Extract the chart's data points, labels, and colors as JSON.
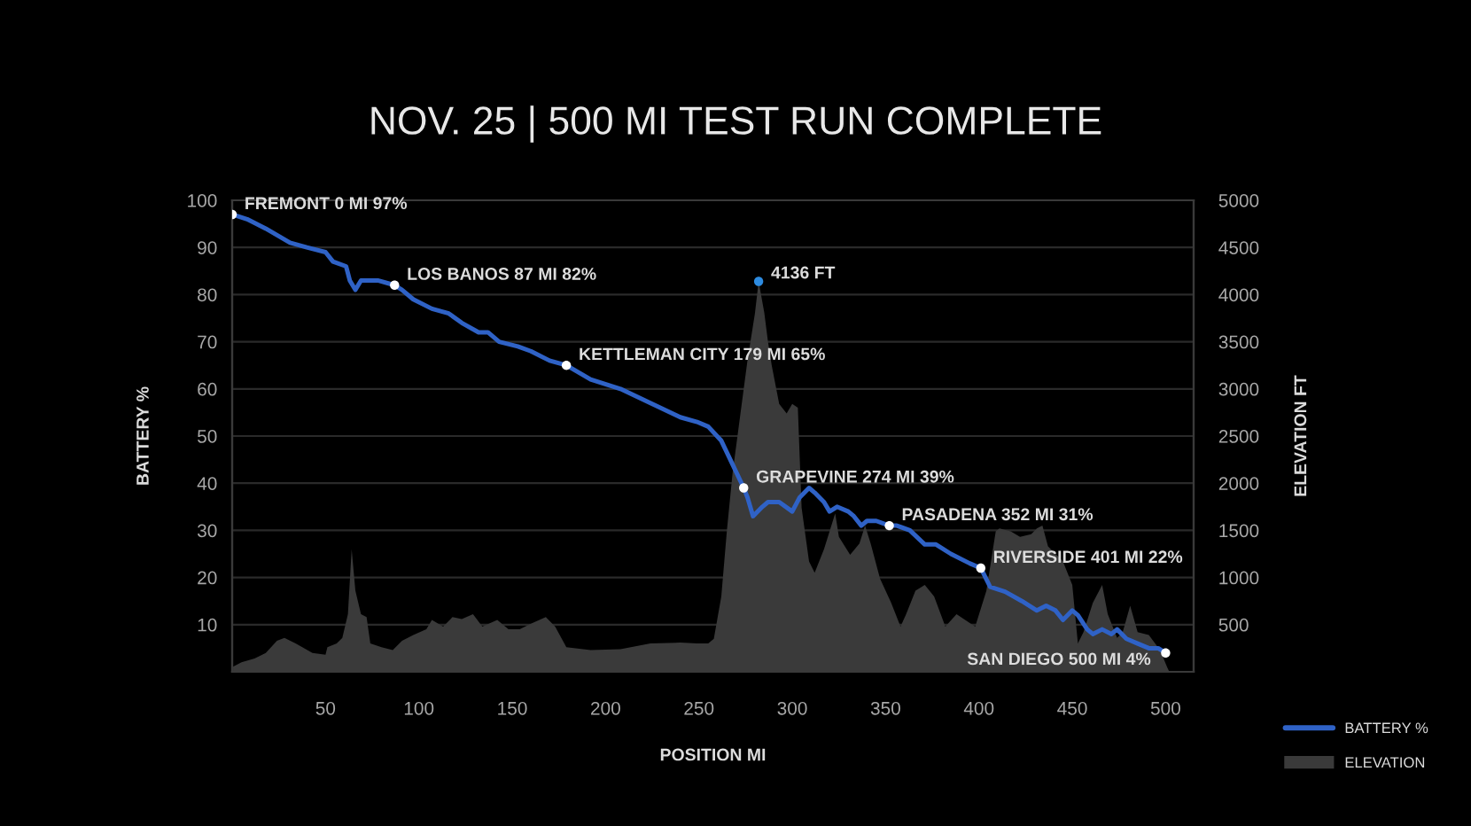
{
  "chart_data": {
    "type": "line",
    "title": "NOV. 25 | 500 MI TEST RUN COMPLETE",
    "xlabel": "POSITION MI",
    "ylabel": "BATTERY %",
    "y2label": "ELEVATION FT",
    "xlim": [
      0,
      515
    ],
    "xticks": [
      50,
      100,
      150,
      200,
      250,
      300,
      350,
      400,
      450,
      500
    ],
    "ylim": [
      0,
      100
    ],
    "yticks": [
      10,
      20,
      30,
      40,
      50,
      60,
      70,
      80,
      90,
      100
    ],
    "y2lim": [
      0,
      5000
    ],
    "y2ticks": [
      500,
      1000,
      1500,
      2000,
      2500,
      3000,
      3500,
      4000,
      4500,
      5000
    ],
    "grid": "y",
    "legend": "bottom right",
    "annotations": [
      {
        "text": "FREMONT 0 MI 97%",
        "x": 0,
        "y": 97
      },
      {
        "text": "LOS BANOS 87 MI 82%",
        "x": 87,
        "y": 82
      },
      {
        "text": "KETTLEMAN CITY 179 MI 65%",
        "x": 179,
        "y": 65
      },
      "4136 FT",
      {
        "text": "GRAPEVINE 274 MI 39%",
        "x": 274,
        "y": 39
      },
      {
        "text": "PASADENA 352 MI 31%",
        "x": 352,
        "y": 31
      },
      {
        "text": "RIVERSIDE 401 MI 22%",
        "x": 401,
        "y": 22
      },
      {
        "text": "SAN DIEGO 500 MI 4%",
        "x": 500,
        "y": 4
      }
    ],
    "series": [
      {
        "name": "BATTERY %",
        "color": "#2f62c6",
        "x": [
          0,
          8,
          18,
          31,
          40,
          50,
          54,
          61,
          63,
          66,
          69,
          73,
          78,
          87,
          91,
          97,
          107,
          116,
          123,
          132,
          137,
          143,
          153,
          160,
          170,
          179,
          192,
          208,
          224,
          240,
          249,
          255,
          262,
          268,
          274,
          276,
          279,
          284,
          287,
          293,
          300,
          304,
          309,
          312,
          317,
          320,
          324,
          330,
          333,
          337,
          340,
          345,
          352,
          356,
          363,
          371,
          377,
          385,
          395,
          401,
          406,
          414,
          423,
          431,
          436,
          441,
          445,
          450,
          453,
          458,
          461,
          466,
          471,
          474,
          479,
          485,
          491,
          496,
          500
        ],
        "values": [
          97,
          96,
          94,
          91,
          90,
          89,
          87,
          86,
          83,
          81,
          83,
          83,
          83,
          82,
          81,
          79,
          77,
          76,
          74,
          72,
          72,
          70,
          69,
          68,
          66,
          65,
          62,
          60,
          57,
          54,
          53,
          52,
          49,
          44,
          39,
          37,
          33,
          35,
          36,
          36,
          34,
          37,
          39,
          38,
          36,
          34,
          35,
          34,
          33,
          31,
          32,
          32,
          31,
          31,
          30,
          27,
          27,
          25,
          23,
          22,
          18,
          17,
          15,
          13,
          14,
          13,
          11,
          13,
          12,
          9,
          8,
          9,
          8,
          9,
          7,
          6,
          5,
          5,
          4
        ]
      },
      {
        "name": "ELEVATION",
        "type": "area",
        "axis": "y2",
        "color": "#3a3a3a",
        "x": [
          0,
          5,
          12,
          18,
          24,
          28,
          34,
          43,
          50,
          51,
          56,
          59,
          62,
          64,
          66,
          69,
          72,
          74,
          80,
          86,
          91,
          97,
          104,
          107,
          113,
          118,
          123,
          129,
          134,
          142,
          148,
          154,
          160,
          168,
          173,
          179,
          192,
          208,
          224,
          240,
          249,
          255,
          258,
          262,
          265,
          268,
          272,
          276,
          280,
          282,
          285,
          287,
          289,
          293,
          297,
          300,
          303,
          305,
          309,
          312,
          317,
          320,
          323,
          325,
          331,
          336,
          339,
          342,
          347,
          353,
          358,
          361,
          366,
          371,
          376,
          382,
          388,
          398,
          404,
          409,
          411,
          417,
          422,
          428,
          431,
          434,
          437,
          445,
          450,
          453,
          456,
          461,
          466,
          469,
          474,
          477,
          481,
          485,
          491,
          497,
          501,
          502
        ],
        "values": [
          50,
          100,
          140,
          200,
          330,
          360,
          300,
          200,
          180,
          260,
          300,
          360,
          610,
          1300,
          860,
          610,
          580,
          300,
          260,
          230,
          330,
          390,
          450,
          550,
          480,
          580,
          560,
          610,
          480,
          550,
          450,
          450,
          510,
          580,
          480,
          260,
          230,
          240,
          300,
          310,
          300,
          300,
          350,
          800,
          1500,
          2100,
          2700,
          3300,
          3800,
          4140,
          3810,
          3500,
          3250,
          2840,
          2740,
          2840,
          2800,
          1740,
          1170,
          1050,
          1300,
          1490,
          1680,
          1430,
          1240,
          1360,
          1550,
          1360,
          990,
          730,
          480,
          610,
          860,
          920,
          800,
          480,
          610,
          480,
          860,
          1490,
          1520,
          1490,
          1430,
          1460,
          1520,
          1550,
          1330,
          1170,
          920,
          300,
          420,
          730,
          920,
          610,
          360,
          420,
          700,
          420,
          390,
          230,
          40,
          0
        ]
      }
    ]
  }
}
